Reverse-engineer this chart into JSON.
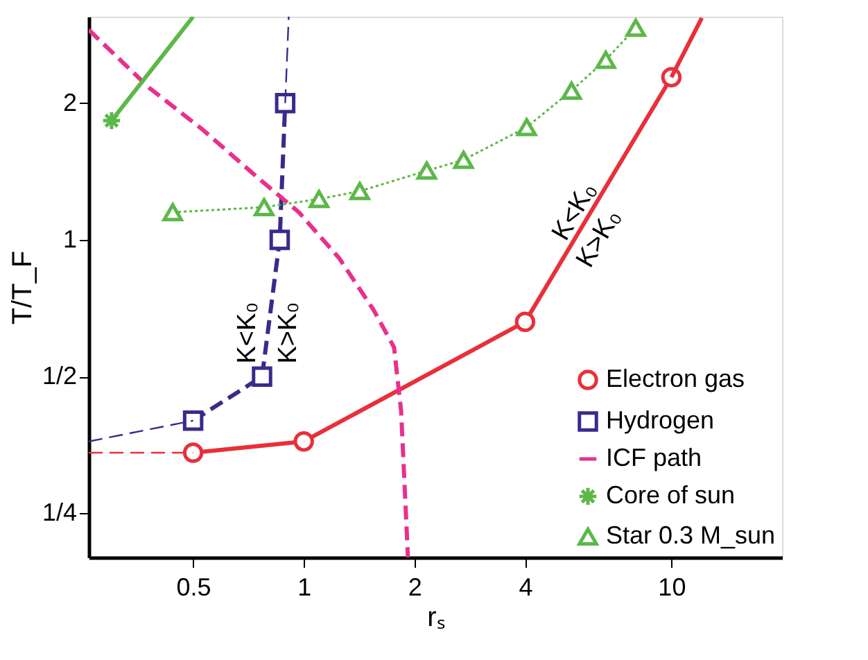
{
  "chart_data": {
    "type": "line",
    "xlabel": "rₛ",
    "ylabel": "T/T_F",
    "log": "xy",
    "xlim": [
      0.26,
      20
    ],
    "ylim": [
      0.2,
      3.1
    ],
    "xticks": [
      0.5,
      1,
      2,
      4,
      10
    ],
    "yticks": [
      {
        "value": 0.25,
        "label": "1/4"
      },
      {
        "value": 0.5,
        "label": "1/2"
      },
      1,
      2
    ],
    "grid": false,
    "legend": "bottom right",
    "series": [
      {
        "name": "Electron gas",
        "color": "#e8303a",
        "marker": "circle",
        "line_style": "solid",
        "x": [
          0.5,
          1,
          4,
          10
        ],
        "values": [
          0.34,
          0.36,
          0.66,
          2.28
        ]
      },
      {
        "name": "Hydrogen",
        "color": "#3b2a8c",
        "marker": "square",
        "line_style": "dashed",
        "x": [
          0.5,
          0.77,
          0.86,
          0.89
        ],
        "values": [
          0.4,
          0.5,
          1.0,
          2.0
        ]
      },
      {
        "name": "ICF path",
        "color": "#e8308c",
        "marker": "none",
        "line_style": "dashed",
        "x": [
          0.26,
          0.38,
          0.53,
          0.75,
          0.97,
          1.25,
          1.55,
          1.76,
          1.84,
          1.92
        ],
        "values": [
          2.9,
          2.16,
          1.75,
          1.37,
          1.15,
          0.91,
          0.7,
          0.58,
          0.42,
          0.2
        ]
      },
      {
        "name": "Core of sun",
        "color": "#5cb848",
        "marker": "cross",
        "line_style": "solid",
        "x": [
          0.3
        ],
        "values": [
          1.83
        ]
      },
      {
        "name": "Star 0.3 M_sun",
        "color": "#5cb848",
        "marker": "triangle",
        "line_style": "dotted",
        "x": [
          0.44,
          0.78,
          1.1,
          1.42,
          2.16,
          2.72,
          4.04,
          5.35,
          6.63,
          8.0
        ],
        "values": [
          1.15,
          1.18,
          1.23,
          1.28,
          1.42,
          1.5,
          1.77,
          2.13,
          2.49,
          2.93
        ]
      },
      {
        "color": "#e8303a",
        "marker": "none",
        "line_style": "solid",
        "x": [
          10,
          12.1
        ],
        "values": [
          2.28,
          3.08
        ]
      },
      {
        "color": "#e8303a",
        "marker": "none",
        "line_style": "dashed",
        "x": [
          0.26,
          0.5
        ],
        "values": [
          0.34,
          0.34
        ]
      },
      {
        "color": "#3b2a8c",
        "marker": "none",
        "line_style": "dashed",
        "x": [
          0.26,
          0.5
        ],
        "values": [
          0.36,
          0.4
        ]
      },
      {
        "color": "#3b2a8c",
        "marker": "none",
        "line_style": "dashed",
        "x": [
          0.89,
          0.91
        ],
        "values": [
          2.0,
          3.1
        ]
      },
      {
        "color": "#5cb848",
        "marker": "none",
        "line_style": "solid",
        "x": [
          0.3,
          0.5
        ],
        "values": [
          1.83,
          3.1
        ]
      }
    ],
    "annotations": [
      "K<K₀",
      "K>K₀",
      "K<K₀",
      "K>K₀"
    ]
  }
}
